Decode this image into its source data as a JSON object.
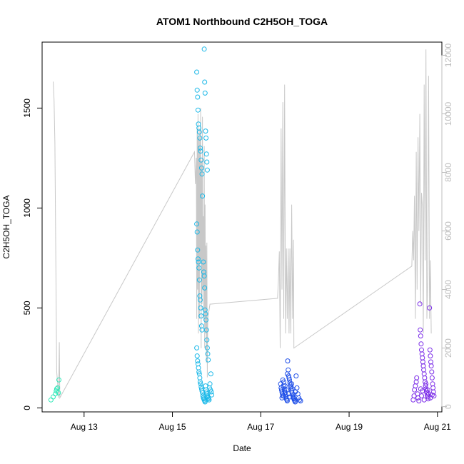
{
  "chart_data": {
    "type": "scatter",
    "title": "ATOM1 Northbound C2H5OH_TOGA",
    "xlabel": "Date",
    "ylabel": "C2H5OH_TOGA",
    "x_ticks": [
      "Aug 13",
      "Aug 15",
      "Aug 17",
      "Aug 19",
      "Aug 21"
    ],
    "y_ticks": [
      0,
      500,
      1000,
      1500
    ],
    "y2_ticks": [
      0,
      2000,
      4000,
      6000,
      8000,
      10000,
      12000
    ],
    "xlim_days": [
      12.05,
      21.1
    ],
    "ylim": [
      -20,
      1830
    ],
    "y2lim": [
      -180,
      12450
    ],
    "grid": false,
    "scatter_groups": [
      {
        "color": "#2ee8b8",
        "points": [
          [
            12.25,
            40
          ],
          [
            12.3,
            55
          ],
          [
            12.35,
            70
          ],
          [
            12.37,
            85
          ],
          [
            12.38,
            95
          ],
          [
            12.4,
            100
          ],
          [
            12.42,
            75
          ],
          [
            12.43,
            140
          ]
        ]
      },
      {
        "color": "#1ab8e8",
        "points": [
          [
            15.55,
            1680
          ],
          [
            15.56,
            1590
          ],
          [
            15.57,
            1555
          ],
          [
            15.58,
            1490
          ],
          [
            15.59,
            1420
          ],
          [
            15.6,
            1400
          ],
          [
            15.61,
            1380
          ],
          [
            15.62,
            1350
          ],
          [
            15.63,
            1300
          ],
          [
            15.64,
            1285
          ],
          [
            15.65,
            1240
          ],
          [
            15.66,
            1200
          ],
          [
            15.67,
            1170
          ],
          [
            15.68,
            1060
          ],
          [
            15.72,
            1795
          ],
          [
            15.73,
            1630
          ],
          [
            15.74,
            1575
          ],
          [
            15.75,
            1385
          ],
          [
            15.76,
            1350
          ],
          [
            15.77,
            1270
          ],
          [
            15.78,
            1230
          ],
          [
            15.79,
            1190
          ],
          [
            15.55,
            920
          ],
          [
            15.56,
            880
          ],
          [
            15.57,
            790
          ],
          [
            15.58,
            745
          ],
          [
            15.59,
            730
          ],
          [
            15.6,
            700
          ],
          [
            15.61,
            640
          ],
          [
            15.62,
            560
          ],
          [
            15.63,
            540
          ],
          [
            15.64,
            500
          ],
          [
            15.65,
            460
          ],
          [
            15.66,
            410
          ],
          [
            15.67,
            390
          ],
          [
            15.7,
            730
          ],
          [
            15.71,
            680
          ],
          [
            15.72,
            660
          ],
          [
            15.73,
            600
          ],
          [
            15.74,
            490
          ],
          [
            15.75,
            470
          ],
          [
            15.76,
            440
          ],
          [
            15.77,
            390
          ],
          [
            15.78,
            340
          ],
          [
            15.79,
            300
          ],
          [
            15.8,
            270
          ],
          [
            15.81,
            240
          ],
          [
            15.55,
            300
          ],
          [
            15.56,
            260
          ],
          [
            15.57,
            235
          ],
          [
            15.58,
            220
          ],
          [
            15.59,
            200
          ],
          [
            15.6,
            180
          ],
          [
            15.61,
            170
          ],
          [
            15.62,
            150
          ],
          [
            15.63,
            130
          ],
          [
            15.64,
            120
          ],
          [
            15.65,
            105
          ],
          [
            15.66,
            95
          ],
          [
            15.67,
            85
          ],
          [
            15.68,
            75
          ],
          [
            15.69,
            60
          ],
          [
            15.7,
            50
          ],
          [
            15.71,
            45
          ],
          [
            15.72,
            40
          ],
          [
            15.73,
            35
          ],
          [
            15.74,
            30
          ],
          [
            15.75,
            110
          ],
          [
            15.76,
            90
          ],
          [
            15.77,
            80
          ],
          [
            15.78,
            70
          ],
          [
            15.79,
            60
          ],
          [
            15.8,
            55
          ],
          [
            15.81,
            50
          ],
          [
            15.82,
            45
          ],
          [
            15.83,
            40
          ],
          [
            15.84,
            100
          ],
          [
            15.85,
            120
          ],
          [
            15.86,
            90
          ],
          [
            15.87,
            170
          ],
          [
            15.88,
            80
          ],
          [
            15.89,
            65
          ]
        ]
      },
      {
        "color": "#1f4fe8",
        "points": [
          [
            17.45,
            120
          ],
          [
            17.46,
            100
          ],
          [
            17.47,
            90
          ],
          [
            17.48,
            80
          ],
          [
            17.49,
            70
          ],
          [
            17.5,
            60
          ],
          [
            17.51,
            110
          ],
          [
            17.52,
            130
          ],
          [
            17.53,
            95
          ],
          [
            17.54,
            85
          ],
          [
            17.55,
            75
          ],
          [
            17.56,
            65
          ],
          [
            17.57,
            55
          ],
          [
            17.58,
            45
          ],
          [
            17.59,
            40
          ],
          [
            17.6,
            35
          ],
          [
            17.61,
            235
          ],
          [
            17.62,
            190
          ],
          [
            17.63,
            160
          ],
          [
            17.64,
            150
          ],
          [
            17.65,
            140
          ],
          [
            17.66,
            125
          ],
          [
            17.67,
            115
          ],
          [
            17.68,
            105
          ],
          [
            17.69,
            95
          ],
          [
            17.7,
            85
          ],
          [
            17.71,
            75
          ],
          [
            17.72,
            65
          ],
          [
            17.73,
            55
          ],
          [
            17.74,
            50
          ],
          [
            17.75,
            45
          ],
          [
            17.76,
            40
          ],
          [
            17.77,
            35
          ],
          [
            17.78,
            30
          ],
          [
            17.48,
            50
          ],
          [
            17.5,
            140
          ],
          [
            17.52,
            60
          ],
          [
            17.55,
            110
          ],
          [
            17.58,
            90
          ],
          [
            17.6,
            170
          ],
          [
            17.63,
            70
          ],
          [
            17.66,
            55
          ],
          [
            17.7,
            120
          ],
          [
            17.72,
            95
          ],
          [
            17.75,
            65
          ],
          [
            17.78,
            80
          ],
          [
            17.8,
            160
          ],
          [
            17.82,
            100
          ],
          [
            17.84,
            70
          ],
          [
            17.86,
            50
          ],
          [
            17.88,
            40
          ],
          [
            17.9,
            35
          ]
        ]
      },
      {
        "color": "#7a2be8",
        "points": [
          [
            20.45,
            40
          ],
          [
            20.47,
            60
          ],
          [
            20.48,
            90
          ],
          [
            20.5,
            110
          ],
          [
            20.52,
            130
          ],
          [
            20.53,
            150
          ],
          [
            20.55,
            70
          ],
          [
            20.56,
            50
          ],
          [
            20.58,
            35
          ],
          [
            20.6,
            520
          ],
          [
            20.61,
            390
          ],
          [
            20.62,
            360
          ],
          [
            20.63,
            320
          ],
          [
            20.64,
            290
          ],
          [
            20.65,
            270
          ],
          [
            20.66,
            250
          ],
          [
            20.67,
            230
          ],
          [
            20.68,
            210
          ],
          [
            20.69,
            190
          ],
          [
            20.7,
            170
          ],
          [
            20.71,
            150
          ],
          [
            20.72,
            130
          ],
          [
            20.73,
            110
          ],
          [
            20.74,
            95
          ],
          [
            20.75,
            85
          ],
          [
            20.76,
            75
          ],
          [
            20.77,
            65
          ],
          [
            20.78,
            55
          ],
          [
            20.79,
            45
          ],
          [
            20.82,
            500
          ],
          [
            20.83,
            290
          ],
          [
            20.84,
            260
          ],
          [
            20.85,
            230
          ],
          [
            20.86,
            210
          ],
          [
            20.87,
            180
          ],
          [
            20.88,
            150
          ],
          [
            20.89,
            120
          ],
          [
            20.9,
            100
          ],
          [
            20.91,
            80
          ],
          [
            20.92,
            60
          ],
          [
            20.62,
            95
          ],
          [
            20.64,
            60
          ],
          [
            20.66,
            85
          ],
          [
            20.7,
            40
          ],
          [
            20.74,
            120
          ],
          [
            20.78,
            90
          ],
          [
            20.8,
            70
          ],
          [
            20.84,
            50
          ],
          [
            20.88,
            65
          ]
        ]
      }
    ],
    "line_series": {
      "color": "#c8c8c8",
      "axis": "right",
      "points": [
        [
          12.3,
          11100
        ],
        [
          12.32,
          10500
        ],
        [
          12.34,
          9000
        ],
        [
          12.36,
          5000
        ],
        [
          12.38,
          1200
        ],
        [
          12.4,
          800
        ],
        [
          12.42,
          300
        ],
        [
          12.43,
          1000
        ],
        [
          12.44,
          2200
        ],
        [
          12.45,
          300
        ],
        [
          15.5,
          8700
        ],
        [
          15.52,
          7600
        ],
        [
          15.54,
          8500
        ],
        [
          15.55,
          3000
        ],
        [
          15.56,
          9500
        ],
        [
          15.57,
          4000
        ],
        [
          15.58,
          10000
        ],
        [
          15.59,
          2500
        ],
        [
          15.6,
          9200
        ],
        [
          15.61,
          3000
        ],
        [
          15.62,
          9500
        ],
        [
          15.63,
          5000
        ],
        [
          15.64,
          10200
        ],
        [
          15.65,
          2000
        ],
        [
          15.66,
          8400
        ],
        [
          15.67,
          3500
        ],
        [
          15.68,
          9900
        ],
        [
          15.69,
          4000
        ],
        [
          15.7,
          6500
        ],
        [
          15.71,
          3000
        ],
        [
          15.72,
          8900
        ],
        [
          15.73,
          2000
        ],
        [
          15.74,
          6900
        ],
        [
          15.75,
          2500
        ],
        [
          15.76,
          5500
        ],
        [
          15.77,
          1500
        ],
        [
          15.78,
          5600
        ],
        [
          15.79,
          1000
        ],
        [
          15.8,
          3000
        ],
        [
          15.85,
          3500
        ],
        [
          17.38,
          3700
        ],
        [
          17.4,
          4300
        ],
        [
          17.42,
          5300
        ],
        [
          17.44,
          2000
        ],
        [
          17.46,
          9500
        ],
        [
          17.48,
          4000
        ],
        [
          17.5,
          10400
        ],
        [
          17.52,
          3000
        ],
        [
          17.54,
          11000
        ],
        [
          17.56,
          2500
        ],
        [
          17.58,
          5400
        ],
        [
          17.6,
          3000
        ],
        [
          17.62,
          5400
        ],
        [
          17.64,
          2500
        ],
        [
          17.66,
          5400
        ],
        [
          17.68,
          2500
        ],
        [
          17.7,
          6900
        ],
        [
          17.72,
          3000
        ],
        [
          17.74,
          5700
        ],
        [
          17.75,
          2000
        ],
        [
          20.42,
          4800
        ],
        [
          20.44,
          6000
        ],
        [
          20.46,
          5000
        ],
        [
          20.48,
          7200
        ],
        [
          20.5,
          3000
        ],
        [
          20.52,
          8700
        ],
        [
          20.54,
          4000
        ],
        [
          20.56,
          9200
        ],
        [
          20.58,
          6000
        ],
        [
          20.6,
          10000
        ],
        [
          20.62,
          3500
        ],
        [
          20.64,
          7300
        ],
        [
          20.66,
          6800
        ],
        [
          20.68,
          2500
        ],
        [
          20.7,
          11000
        ],
        [
          20.72,
          5000
        ],
        [
          20.74,
          12200
        ],
        [
          20.76,
          3000
        ],
        [
          20.78,
          4500
        ],
        [
          20.8,
          11300
        ],
        [
          20.82,
          3000
        ],
        [
          20.84,
          5000
        ],
        [
          20.86,
          2500
        ]
      ]
    }
  }
}
